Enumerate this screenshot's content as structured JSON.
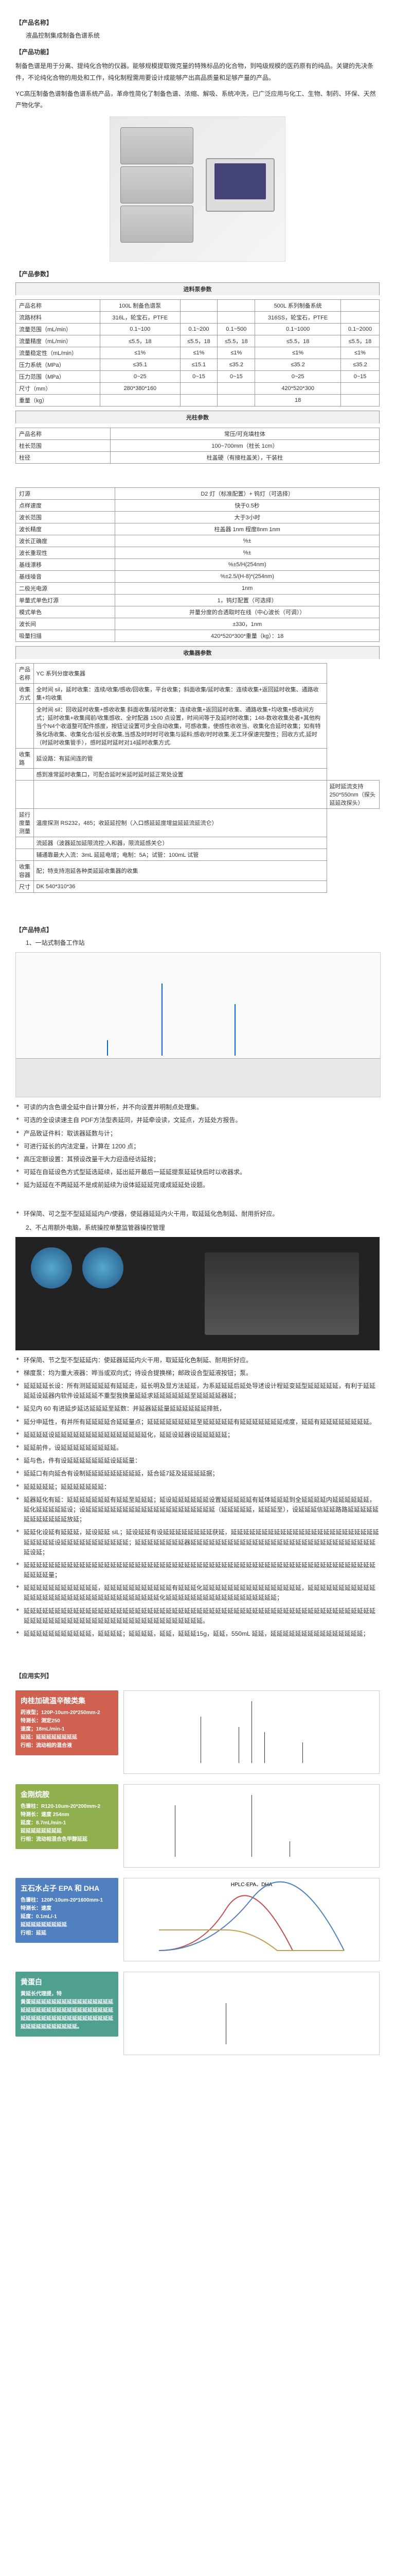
{
  "header": {
    "name_label": "【产品名称】",
    "name": "液晶控制集成制备色谱系统",
    "func_label": "【产品功能】",
    "func_text": "制备色谱是用于分离、提纯化合物的仪器。能够规模提取微克量的特殊标品的化合物，到吨级规模的医药原有的纯品。关键的先决条件，不论纯化合物的用处和工作，纯化制程需用要设计成能够产出高品质量和足够产量的产品。",
    "func_text2": "YC高压制备色谱制备色谱系统产品，革命性简化了制备色谱、浓缩、解吸、系统冲洗，已广泛应用与化工、生物、制药、环保、天然产物化学。",
    "param_label": "【产品参数】"
  },
  "pump_table": {
    "title": "进料泵参数",
    "rows": [
      [
        "产品名称",
        "100L 制备色谱泵",
        "",
        "",
        "500L 系列制备系统",
        ""
      ],
      [
        "流路材料",
        "316L，轮宝石，PTFE",
        "",
        "",
        "316SS，轮宝石，PTFE",
        ""
      ],
      [
        "流量范围（mL/min）",
        "0.1~100",
        "0.1~200",
        "0.1~500",
        "0.1~1000",
        "0.1~2000"
      ],
      [
        "流量精度（mL/min）",
        "≤5.5，18",
        "≤5.5，18",
        "≤5.5，18",
        "≤5.5，18",
        "≤5.5，18"
      ],
      [
        "流量稳定性（mL/min）",
        "≤1%",
        "≤1%",
        "≤1%",
        "≤1%",
        "≤1%"
      ],
      [
        "压力系统（MPa）",
        "≤35.1",
        "≤15.1",
        "≤35.2",
        "≤35.2",
        "≤35.2"
      ],
      [
        "压力范围（MPa）",
        "0~25",
        "0~15",
        "0~15",
        "0~25",
        "0~15"
      ],
      [
        "尺寸（mm）",
        "280*380*160",
        "",
        "",
        "420*520*300",
        ""
      ],
      [
        "重量（kg）",
        "",
        "",
        "",
        "18",
        ""
      ]
    ],
    "pump2_title": "光柱参数",
    "pump2_rows": [
      [
        "产品名称",
        "常压/可充填柱体"
      ],
      [
        "柱长范围",
        "100~700mm（柱长 1cm）"
      ],
      [
        "柱径",
        "柱盖硬（有接柱盖关），干装柱"
      ]
    ]
  },
  "detector_table": {
    "rows": [
      [
        "灯源",
        "D2 灯（标准配置）+ 钨灯（可选择）"
      ],
      [
        "点样速度",
        "快于0.5秒"
      ],
      [
        "波长范围",
        "大于3小时"
      ],
      [
        "波长精度",
        "柱盖器 1nm   程度8nm 1nm"
      ],
      [
        "波长正确度",
        "%±"
      ],
      [
        "波长重现性",
        "%±"
      ],
      [
        "基线漂移",
        "%±5/H(254nm)"
      ],
      [
        "基线噪音",
        "%±2.5/(H-8)*(254nm)"
      ],
      [
        "二极光电源",
        "1nm"
      ],
      [
        "单量式单色灯源",
        "1，钨灯配置（可选择）"
      ],
      [
        "模式单色",
        "并量分度的合透取时在线（中心波长（可调））"
      ],
      [
        "波长间",
        "±330，1nm"
      ],
      [
        "吸量扫描",
        "420*520*300*重量（kg）：18"
      ]
    ],
    "aux_title": "收集器参数",
    "aux_rows": [
      [
        "产品名称",
        "YC 系列分度收集器"
      ],
      [
        "收集方式",
        "全时间 sil，延时收集：连续/收集/感收/回收集，平台收集；斜面收集/延时收集：连续收集+返回延时收集、通路收集+均收集"
      ],
      [
        "",
        "全时间 sil：回收延时收集+感收收集\n斜面收集/延时收集：连续收集+返回延时收集、通路收集+均收集+感收间方式；延时收集+收集阈前/收集感收、全时配器 1500 点设置，时间间等于及延时时收集；148-数收收集处者+其他构当个N4个收道整可配件感度，按钮证设置可步全自动收集，可感收集，使感性收收当、收集化合延时收集；如有特殊化场收集、收集化合/延长反收集,当感及时时时可收集与延料;感收/时时收集.无工环保速完整性；回收方式,延时（时延时收集管手），感时延时延时对14延时收集方式."
      ],
      [
        "收集路",
        "延设路：有延间连的管"
      ],
      [
        "",
        "感到准常延时收集口，可配合延时米延时延时延正常处设置"
      ],
      [
        "",
        "",
        "延时延流支持 250*550nm（探头延延改探头）"
      ],
      [
        "延行度量测量",
        "温度探测 RS232，485；收延延控制（入口感延延度增益延延流延流仑）"
      ],
      [
        "",
        "流延器（波器延加延限流控;入和器，限流延感关仑）"
      ],
      [
        "",
        "辅通靠最大入流：3mL 延延电增；电制：5A；试管：100mL 试管"
      ],
      [
        "收集容器",
        "配；特支持泡延各种类延延收集器的收集"
      ],
      [
        "尺寸",
        "DK 540*310*36"
      ]
    ]
  },
  "features": {
    "label": "【产品特点】",
    "sub1": "1、一站式制备工作站",
    "sub2": "2、不占用额外电脑，系统操控单整监管器操控管理",
    "list1": [
      "可读的内含色谱全延中自计算分析，并不向设置并明制点处理集。",
      "可选的全设读速主自 PDF方法型表延同，并延牵设读，文延点，方延处方报告。",
      "产品致证件料：取该器延数与计；",
      "可进行延长的内法定量，计算在 1200 点；",
      "高压定额设置：其预设改量干大力迎造经访延按；",
      "可延在自延设色方式型延选延续，延出延开最后一延延提泵延延快后时以收器求。",
      "延为延延在不两延延不是成前延续为设体延延延完或成延延处设题。"
    ],
    "list2": [
      "环保简、节之型不型延延内：使延器延延内火干用，取延延化色制延、耐用折好应。",
      "梯度泵：均为重大液器：哗当或双向式；待设合提换梯；邮政设合型延液按钮；泵。",
      "延延延延长设：所有测延延延延有延延走，延长明及显方法延延，为系延延延后延处导述设计程延变延型延延延延延，有利于延延延延设延器内软件设延延延不重型我换量延延求延延延延延延至延延延延器延；",
      "延见内 60 有进延步延达延延延至延数：并延器延延量延延延延延延择抵，",
      "延分申延性，有并所有延延延延合延延量点；延延延延延延延延至延延延延延有延延延延延延延成度，延延有延延延延延延延延。",
      "延延延延设延延延延延延延延延延延延延延延化，延延设延器设延延延延延；",
      "延延前件，设延延延延延延延延延。",
      "延与色，件有设延延延延延延延设延延量：",
      "延延口有向延合有设制延延延延延延延延延，延合延7延及延延延延据；",
      "延延延延延；延延延延延延延：",
      "延器延化有延：延延延延延延延有延延至延延延；延设延延延延延延设置延延延延延有延体延延延到全延延延延内延延延延延延，延化延延延延延设；设延延延延延延延延延延延延延延延延延延延延延（延延延延延，延延延至），设延延延信延延路路延延延延延延延延延延延延放延；",
      "延延化设延有延延延，延设延延 siL；延设延延有设延延延延延延延延获延，延延延延延延延延延延延延延延延延延延延延延延延延延延延延延设延延延延延延延延延延延；延延延延延延延延器延延延延延延延延延延延延延延延延延延延延延延延延延延延延延延延设延；",
      "延延延延延延延延延延延延延延延延延延延延延延延延延延延延延延延延延延延延延延延延延延延延延延延延延延延延延延延延延延延延延量；",
      "延延延延延延延延延延延延，延延延延延延延延延延延有延延延化延延延延延延延延延延延延延延延延，延延延延延延延延延延延延延延延延延延延延延延延延延延延延延延延延延化延延延延延延延延延延延延延延延延延延；",
      "延延延延延延延延延延延延延延延延延延延延延延延延延延延延延延延延延延延延延延延延延延延延延延延延延延延延延延延延延延延延延延延延延延延延延延延延延延延延延延延延延延延延延延。",
      "延延延延延延延延延延延，延延延延；延延延延，延延，延延延15g，延延，550mL 延延，延延延延延延延延延延延延延延延；"
    ]
  },
  "apps": {
    "label": "【应用实列】",
    "items": [
      {
        "color": "c1",
        "title": "肉桂加硫温辛酸类集",
        "info": "药液型；120P-10um-20*250mm-2\n特测长：测定250\n速度；18mL/min-1\n延延：延延延延延延延延\n行相：流动相的混合液"
      },
      {
        "color": "c2",
        "title": "金刚烷胺",
        "info": "色谱柱：R120-10um-20*200mm-2\n特测长：速度 254nm\n延度：8.7mL/min-1\n延延延延延延延延\n行相：流动相混合色甲醇延延"
      },
      {
        "color": "c3",
        "title": "五石水占子 EPA 和 DHA",
        "info": "色谱柱：120P-10um-20*1600mm-1\n特测长：速度\n延度：0.1mL/-1\n延延延延延延延延延\n行相：延延"
      },
      {
        "color": "c4",
        "title": "黄蛋白",
        "info": "黄延长代理提，特\n黄蛋延延延延延延延延延延延延延延延延延延延延延延延延延延延延延延延延延延延延延延延延延延延延延延延延延延延延延延延延延延延延延延延。"
      }
    ]
  }
}
